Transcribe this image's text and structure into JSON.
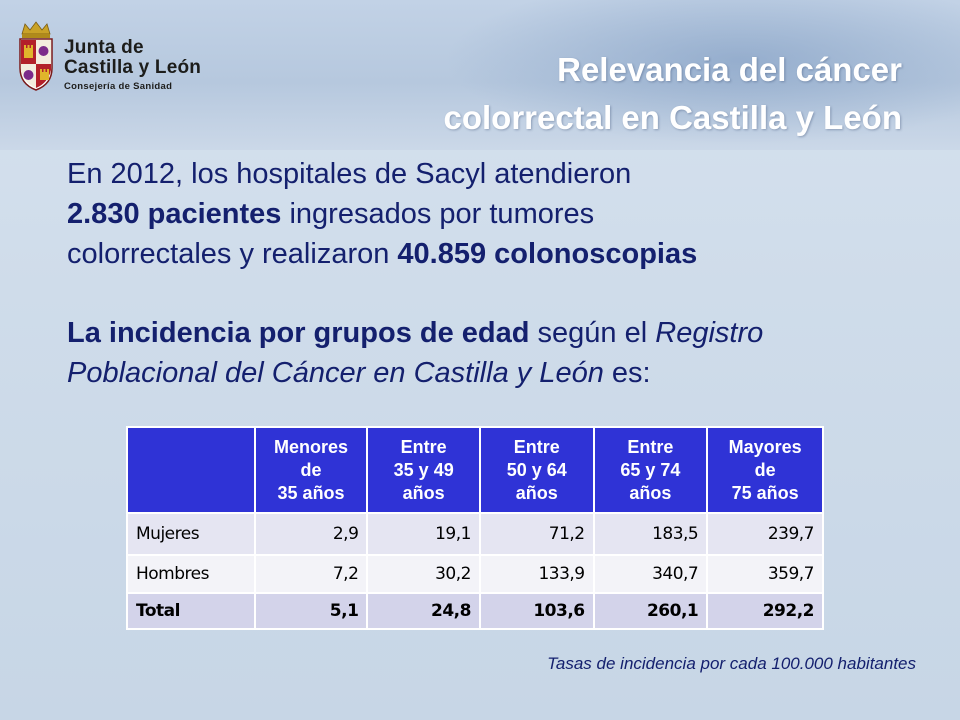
{
  "logo": {
    "line1": "Junta de",
    "line2": "Castilla y León",
    "line3": "Consejería de Sanidad",
    "icon": "coat-of-arms"
  },
  "title": {
    "line1": "Relevancia del cáncer",
    "line2": "colorrectal en Castilla y León"
  },
  "paragraph1": {
    "t1": "En 2012, los hospitales de Sacyl atendieron",
    "t2_bold": "2.830 pacientes",
    "t3": " ingresados por tumores",
    "t4": "colorrectales  y realizaron ",
    "t5_bold": "40.859 colonoscopias"
  },
  "paragraph2": {
    "t1_bold": "La incidencia por grupos de edad",
    "t2": " según el ",
    "t3_italic": "Registro",
    "t4_italic": "Poblacional del Cáncer en Castilla y León",
    "t5": " es:"
  },
  "table": {
    "headers": [
      "",
      [
        "Menores",
        "de",
        "35 años"
      ],
      [
        "Entre",
        "35 y 49",
        "años"
      ],
      [
        "Entre",
        "50 y 64",
        "años"
      ],
      [
        "Entre",
        "65 y 74",
        "años"
      ],
      [
        "Mayores",
        "de",
        "75 años"
      ]
    ],
    "rows": [
      {
        "label": "Mujeres",
        "values": [
          "2,9",
          "19,1",
          "71,2",
          "183,5",
          "239,7"
        ]
      },
      {
        "label": "Hombres",
        "values": [
          "7,2",
          "30,2",
          "133,9",
          "340,7",
          "359,7"
        ]
      },
      {
        "label": "Total",
        "values": [
          "5,1",
          "24,8",
          "103,6",
          "260,1",
          "292,2"
        ]
      }
    ]
  },
  "footnote": "Tasas de incidencia por cada 100.000 habitantes",
  "colors": {
    "header_bg": "#2f33d6",
    "text": "#14206e",
    "title": "#ffffff"
  }
}
